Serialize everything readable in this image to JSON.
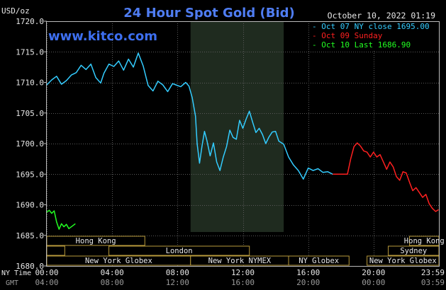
{
  "chart_data": {
    "type": "line",
    "title": "24 Hour Spot Gold (Bid)",
    "unit_label": "USD/oz",
    "watermark": "www.kitco.com",
    "timestamp": "October 10, 2022 01:19",
    "ylim": [
      1680,
      1720
    ],
    "yticks": [
      "1720.0",
      "1715.0",
      "1710.0",
      "1705.0",
      "1700.0",
      "1695.0",
      "1690.0",
      "1685.0",
      "1680.0"
    ],
    "x_hours": [
      0,
      4,
      8,
      12,
      16,
      20,
      23.98
    ],
    "ny_time_label": "NY Time",
    "gmt_label": "GMT",
    "ny_ticks": [
      "00:00",
      "04:00",
      "08:00",
      "12:00",
      "16:00",
      "20:00",
      "23:59"
    ],
    "gmt_ticks": [
      "04:00",
      "08:00",
      "12:00",
      "16:00",
      "20:00",
      "00:00",
      "03:59"
    ],
    "legend": [
      {
        "label": "Oct 07 NY close 1695.00",
        "color": "#33ccff"
      },
      {
        "label": "Oct 09 Sunday",
        "color": "#ff2020"
      },
      {
        "label": "Oct 10 Last 1686.90",
        "color": "#22ff22"
      }
    ],
    "highlight_band_hours": [
      8.8,
      14.5
    ],
    "sessions_top": [
      {
        "name": "Hong Kong",
        "start": 0,
        "end": 6,
        "row": 0
      },
      {
        "name": "Hong Kong",
        "start": 22.2,
        "end": 24,
        "row": 0
      }
    ],
    "sessions_mid": [
      {
        "name": "",
        "start": 0,
        "end": 1.1,
        "row": 1
      },
      {
        "name": "London",
        "start": 3.8,
        "end": 12.4,
        "row": 1
      },
      {
        "name": "Sydney",
        "start": 20.9,
        "end": 24,
        "row": 1
      }
    ],
    "sessions_bottom": [
      {
        "name": "New York Globex",
        "start": 0,
        "end": 8.8,
        "row": 2
      },
      {
        "name": "New York NYMEX",
        "start": 8.8,
        "end": 14.8,
        "row": 2
      },
      {
        "name": "NY Globex",
        "start": 14.8,
        "end": 18.5,
        "row": 2
      },
      {
        "name": "New York Globex",
        "start": 19.6,
        "end": 24,
        "row": 2
      }
    ],
    "series": [
      {
        "name": "Oct 07 NY close 1695.00",
        "color": "#33ccff",
        "x": [
          0,
          0.3,
          0.6,
          0.9,
          1.2,
          1.5,
          1.8,
          2.1,
          2.4,
          2.7,
          3.0,
          3.3,
          3.5,
          3.8,
          4.1,
          4.4,
          4.7,
          5.0,
          5.3,
          5.6,
          5.9,
          6.2,
          6.5,
          6.8,
          7.1,
          7.4,
          7.7,
          7.9,
          8.2,
          8.5,
          8.7,
          8.9,
          9.1,
          9.2,
          9.35,
          9.5,
          9.65,
          9.8,
          10.0,
          10.2,
          10.4,
          10.6,
          10.8,
          11.0,
          11.2,
          11.4,
          11.6,
          11.8,
          12.0,
          12.2,
          12.4,
          12.6,
          12.8,
          13.0,
          13.2,
          13.4,
          13.6,
          13.8,
          14.0,
          14.2,
          14.5,
          14.8,
          15.1,
          15.4,
          15.7,
          16.0,
          16.3,
          16.6,
          16.9,
          17.2,
          17.5
        ],
        "values": [
          1709.6,
          1710.4,
          1711.0,
          1709.7,
          1710.3,
          1711.2,
          1711.6,
          1712.8,
          1712.1,
          1713.0,
          1710.8,
          1709.9,
          1711.5,
          1713.0,
          1712.6,
          1713.5,
          1712.0,
          1713.8,
          1712.5,
          1714.8,
          1712.7,
          1709.5,
          1708.6,
          1710.2,
          1709.6,
          1708.5,
          1709.8,
          1709.6,
          1709.3,
          1710.0,
          1709.4,
          1707.5,
          1704.5,
          1700.0,
          1696.8,
          1699.6,
          1702.0,
          1700.5,
          1698.0,
          1700.1,
          1697.0,
          1695.6,
          1697.8,
          1699.5,
          1702.2,
          1701.0,
          1700.7,
          1703.8,
          1702.5,
          1704.0,
          1705.3,
          1703.5,
          1701.8,
          1702.5,
          1701.5,
          1700.0,
          1701.1,
          1701.9,
          1702.0,
          1700.4,
          1699.9,
          1697.8,
          1696.5,
          1695.6,
          1694.2,
          1696.0,
          1695.6,
          1695.9,
          1695.3,
          1695.4,
          1695.0
        ]
      },
      {
        "name": "Oct 09 Sunday",
        "color": "#ff2020",
        "x": [
          17.5,
          18.4,
          18.6,
          18.8,
          19.0,
          19.2,
          19.4,
          19.6,
          19.8,
          20.0,
          20.2,
          20.4,
          20.6,
          20.8,
          21.0,
          21.2,
          21.4,
          21.6,
          21.8,
          22.0,
          22.2,
          22.4,
          22.6,
          22.8,
          23.0,
          23.2,
          23.4,
          23.6,
          23.8,
          23.98
        ],
        "values": [
          1695.0,
          1695.0,
          1697.5,
          1699.5,
          1700.1,
          1699.6,
          1698.8,
          1698.6,
          1697.8,
          1698.6,
          1697.8,
          1698.2,
          1697.0,
          1695.8,
          1697.0,
          1696.2,
          1694.6,
          1694.0,
          1695.4,
          1695.2,
          1693.7,
          1692.3,
          1692.8,
          1692.0,
          1691.2,
          1691.7,
          1690.2,
          1689.4,
          1688.9,
          1689.2
        ]
      },
      {
        "name": "Oct 10 Last 1686.90",
        "color": "#22ff22",
        "x": [
          0,
          0.15,
          0.3,
          0.45,
          0.6,
          0.75,
          0.9,
          1.05,
          1.2,
          1.35,
          1.55,
          1.75
        ],
        "values": [
          1688.8,
          1689.1,
          1688.6,
          1689.0,
          1687.2,
          1686.0,
          1686.9,
          1686.4,
          1686.8,
          1686.1,
          1686.5,
          1686.9
        ]
      }
    ]
  }
}
